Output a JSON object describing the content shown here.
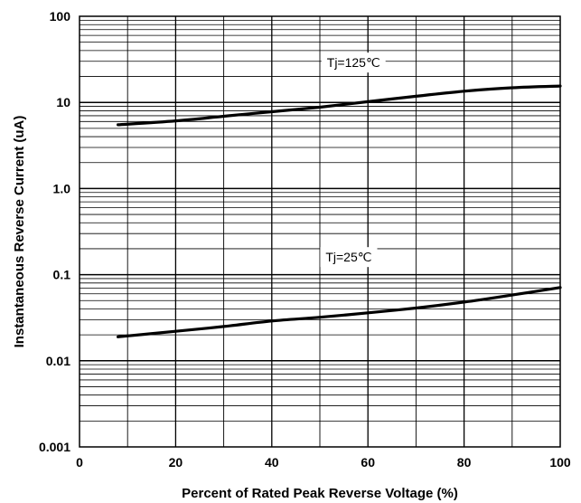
{
  "chart_data": {
    "type": "line",
    "title": "",
    "xlabel": "Percent of Rated Peak Reverse Voltage (%)",
    "ylabel": "Instantaneous Reverse Current (uA)",
    "xlim": [
      0,
      100
    ],
    "ylim": [
      0.001,
      100
    ],
    "y_scale": "log",
    "grid": true,
    "x_ticks": [
      {
        "value": 0,
        "label": "0"
      },
      {
        "value": 20,
        "label": "20"
      },
      {
        "value": 40,
        "label": "40"
      },
      {
        "value": 60,
        "label": "60"
      },
      {
        "value": 80,
        "label": "80"
      },
      {
        "value": 100,
        "label": "100"
      }
    ],
    "y_ticks": [
      {
        "value": 0.001,
        "label": "0.001"
      },
      {
        "value": 0.01,
        "label": "0.01"
      },
      {
        "value": 0.1,
        "label": "0.1"
      },
      {
        "value": 1,
        "label": "1.0"
      },
      {
        "value": 10,
        "label": "10"
      },
      {
        "value": 100,
        "label": "100"
      }
    ],
    "series": [
      {
        "name": "Tj=125℃",
        "x": [
          8,
          20,
          30,
          40,
          50,
          60,
          70,
          80,
          90,
          100
        ],
        "y": [
          5.5,
          6.1,
          6.9,
          7.8,
          8.8,
          10.2,
          11.8,
          13.5,
          14.8,
          15.5
        ]
      },
      {
        "name": "Tj=25℃",
        "x": [
          8,
          20,
          30,
          40,
          50,
          60,
          70,
          80,
          90,
          100
        ],
        "y": [
          0.019,
          0.022,
          0.025,
          0.029,
          0.032,
          0.036,
          0.041,
          0.048,
          0.058,
          0.071
        ]
      }
    ]
  }
}
